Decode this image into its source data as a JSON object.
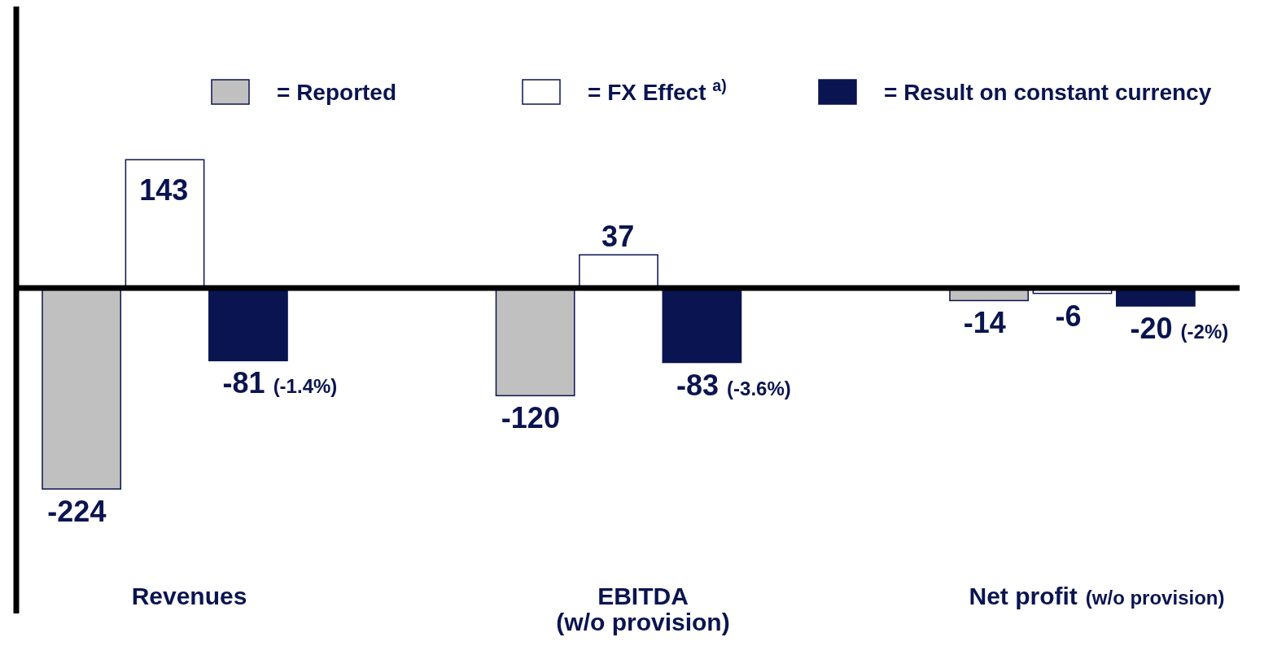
{
  "chart_data": {
    "type": "bar",
    "categories": [
      "Revenues",
      "EBITDA\n(w/o provision)",
      "Net profit (w/o provision)"
    ],
    "series": [
      {
        "name": "= Reported",
        "color": "#c0c0c0",
        "values": [
          -224,
          -120,
          -14
        ],
        "value_labels": [
          "-224",
          "-120",
          "-14"
        ]
      },
      {
        "name": "= FX Effect $^{a)}$",
        "color": "#ffffff",
        "values": [
          143,
          37,
          -6
        ],
        "value_labels": [
          "143",
          "37",
          "-6"
        ]
      },
      {
        "name": "= Result on constant currency",
        "color": "#0a1450",
        "values": [
          -81,
          -83,
          -20
        ],
        "value_labels": [
          "-81 (-1.4%)",
          "-83 (-3.6%)",
          "-20 (-2%)"
        ]
      }
    ],
    "legend": "top"
  }
}
